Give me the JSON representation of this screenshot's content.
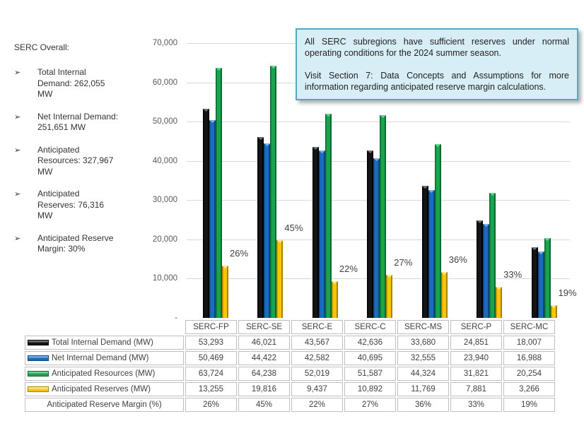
{
  "sidebar": {
    "title": "SERC Overall:",
    "bullet_glyph": "➢",
    "items": [
      "Total Internal Demand: 262,055 MW",
      "Net Internal Demand: 251,651 MW",
      "Anticipated Resources: 327,967 MW",
      "Anticipated Reserves: 76,316 MW",
      "Anticipated Reserve Margin: 30%"
    ]
  },
  "callout": {
    "paragraphs": [
      "All SERC subregions have sufficient reserves under normal operating conditions for the 2024 summer season.",
      "Visit Section 7: Data Concepts and Assumptions for more information regarding anticipated reserve margin calculations."
    ],
    "background_color": "#d8eef6",
    "border_color": "#4bacc6"
  },
  "chart_data": {
    "type": "bar",
    "title": "",
    "categories": [
      "SERC-FP",
      "SERC-SE",
      "SERC-E",
      "SERC-C",
      "SERC-MS",
      "SERC-P",
      "SERC-MC"
    ],
    "series": [
      {
        "key": "total-internal-demand",
        "name": "Total Internal Demand (MW)",
        "color": "#141414",
        "edge": "#000000",
        "cap": "#6e6e6e",
        "values": [
          53293,
          46021,
          43567,
          42636,
          33680,
          24851,
          18007
        ]
      },
      {
        "key": "net-internal-demand",
        "name": "Net Internal Demand (MW)",
        "color": "#1a6cc2",
        "edge": "#0d4678",
        "cap": "#7ab0e0",
        "values": [
          50469,
          44422,
          42582,
          40695,
          32555,
          23940,
          16988
        ]
      },
      {
        "key": "anticipated-resources",
        "name": "Anticipated Resources (MW)",
        "color": "#1aa34f",
        "edge": "#0b6a31",
        "cap": "#68d193",
        "values": [
          63724,
          64238,
          52019,
          51587,
          44324,
          31821,
          20254
        ]
      },
      {
        "key": "anticipated-reserves",
        "name": "Anticipated Reserves (MW)",
        "color": "#f8c500",
        "edge": "#a98100",
        "cap": "#ffe793",
        "values": [
          13255,
          19816,
          9437,
          10892,
          11769,
          7881,
          3266
        ]
      }
    ],
    "margin_row": {
      "label": "Anticipated Reserve Margin (%)",
      "values": [
        "26%",
        "45%",
        "22%",
        "27%",
        "36%",
        "33%",
        "19%"
      ]
    },
    "xlabel": "",
    "ylabel": "",
    "ylim": [
      0,
      70000
    ],
    "ytick_step": 10000,
    "ytick_labels": [
      "70,000",
      "60,000",
      "50,000",
      "40,000",
      "30,000",
      "20,000",
      "10,000",
      "-"
    ],
    "grid": true,
    "legend_position": "table-left-column"
  }
}
